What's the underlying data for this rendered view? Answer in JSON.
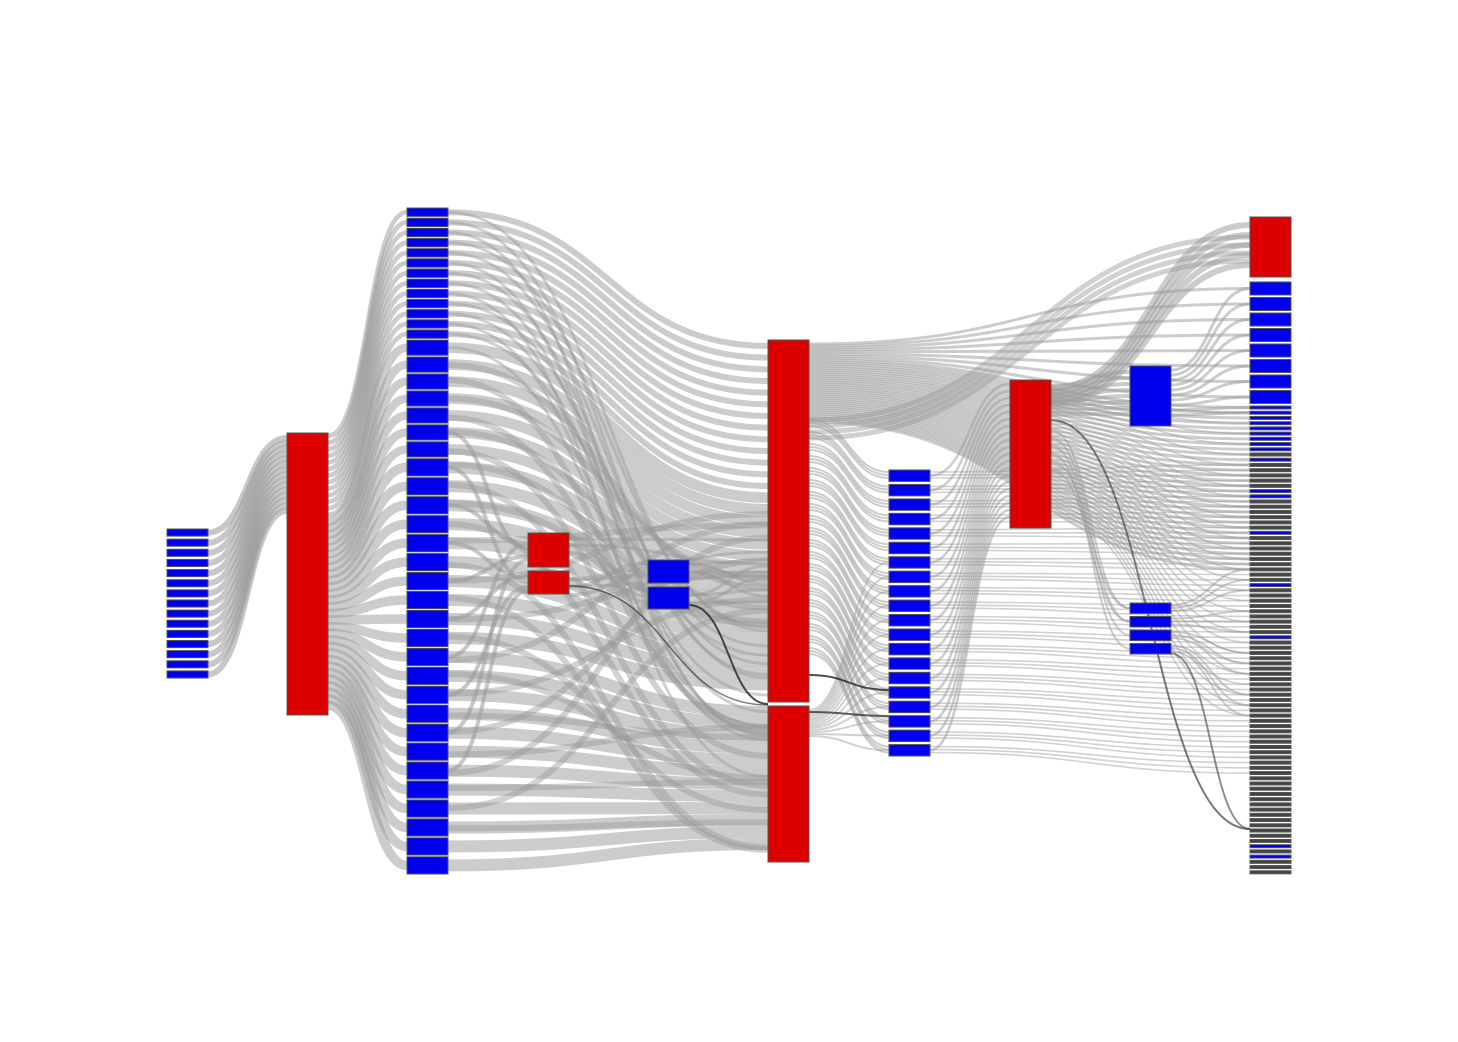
{
  "diagram": {
    "type": "sankey",
    "colors": {
      "red_node": "#dd0000",
      "blue_node": "#0000ee",
      "link": "#999999",
      "dark_link": "#222222",
      "node_border": "#555555",
      "background": "#ffffff"
    },
    "columns": [
      {
        "index": 0,
        "color": "blue",
        "segments": 15
      },
      {
        "index": 1,
        "color": "red",
        "segments": 1
      },
      {
        "index": 2,
        "color": "blue",
        "segments": 42
      },
      {
        "index": 3,
        "color": "red",
        "segments": 2
      },
      {
        "index": 4,
        "color": "blue",
        "segments": 2
      },
      {
        "index": 5,
        "color": "red",
        "segments": 2
      },
      {
        "index": 6,
        "color": "blue",
        "segments": 20
      },
      {
        "index": 7,
        "color": "red",
        "segments": 1
      },
      {
        "index": 8,
        "color": "blue",
        "segments": 2
      },
      {
        "index": 9,
        "color": "red",
        "segments": 1
      },
      {
        "index": 10,
        "color": "mixed",
        "segments": 90
      }
    ],
    "link_count": 800
  }
}
